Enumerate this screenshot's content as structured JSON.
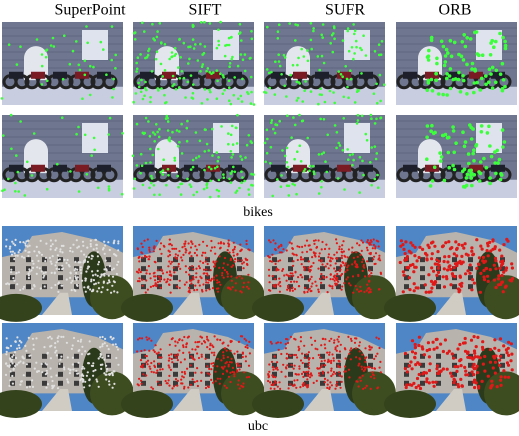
{
  "header": {
    "columns": [
      "SuperPoint",
      "SIFT",
      "SUFR",
      "ORB"
    ]
  },
  "groups": [
    {
      "label": "bikes"
    },
    {
      "label": "ubc"
    }
  ]
}
